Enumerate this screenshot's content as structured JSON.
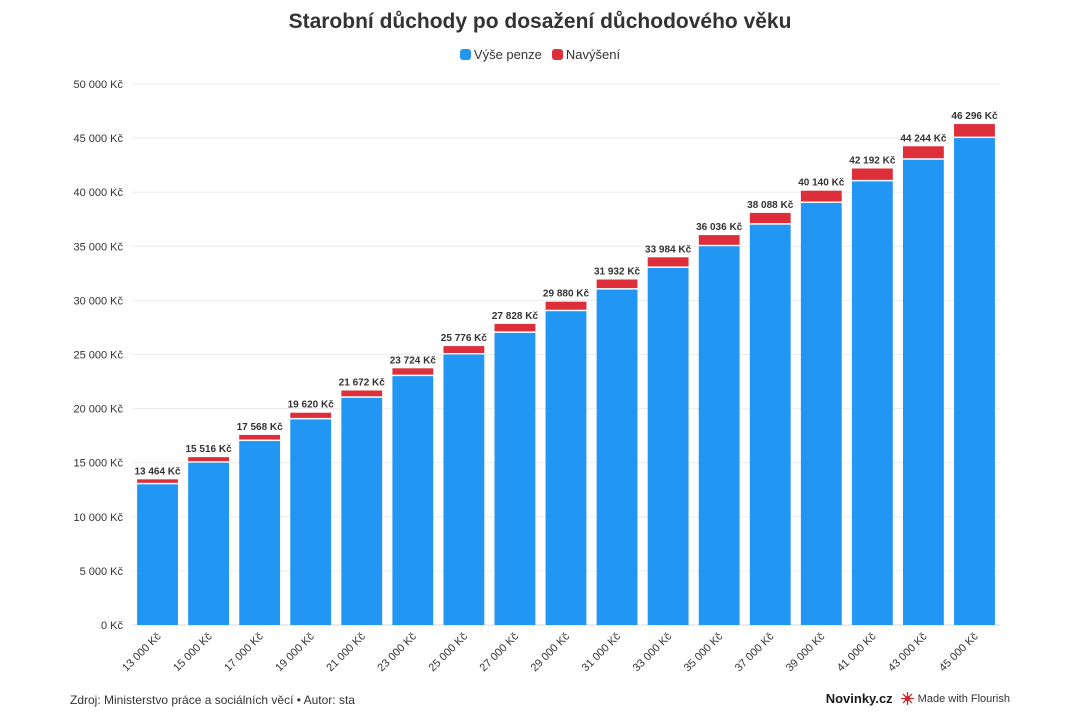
{
  "chart_data": {
    "type": "bar",
    "stacked": true,
    "title": "Starobní důchody po dosažení důchodového věku",
    "categories": [
      "13 000 Kč",
      "15 000 Kč",
      "17 000 Kč",
      "19 000 Kč",
      "21 000 Kč",
      "23 000 Kč",
      "25 000 Kč",
      "27 000 Kč",
      "29 000 Kč",
      "31 000 Kč",
      "33 000 Kč",
      "35 000 Kč",
      "37 000 Kč",
      "39 000 Kč",
      "41 000 Kč",
      "43 000 Kč",
      "45 000 Kč"
    ],
    "series": [
      {
        "name": "Výše penze",
        "color": "#2196f3",
        "values": [
          13000,
          15000,
          17000,
          19000,
          21000,
          23000,
          25000,
          27000,
          29000,
          31000,
          33000,
          35000,
          37000,
          39000,
          41000,
          43000,
          45000
        ]
      },
      {
        "name": "Navýšení",
        "color": "#dc2f3a",
        "values": [
          464,
          516,
          568,
          620,
          672,
          724,
          776,
          828,
          880,
          932,
          984,
          1036,
          1088,
          1140,
          1192,
          1244,
          1296
        ]
      }
    ],
    "total_labels": [
      "13 464 Kč",
      "15 516 Kč",
      "17 568 Kč",
      "19 620 Kč",
      "21 672 Kč",
      "23 724 Kč",
      "25 776 Kč",
      "27 828 Kč",
      "29 880 Kč",
      "31 932 Kč",
      "33 984 Kč",
      "36 036 Kč",
      "38 088 Kč",
      "40 140 Kč",
      "42 192 Kč",
      "44 244 Kč",
      "46 296 Kč"
    ],
    "y_ticks": [
      0,
      5000,
      10000,
      15000,
      20000,
      25000,
      30000,
      35000,
      40000,
      45000,
      50000
    ],
    "y_tick_labels": [
      "0 Kč",
      "5 000 Kč",
      "10 000 Kč",
      "15 000 Kč",
      "20 000 Kč",
      "25 000 Kč",
      "30 000 Kč",
      "35 000 Kč",
      "40 000 Kč",
      "45 000 Kč",
      "50 000 Kč"
    ],
    "ylim": [
      0,
      50000
    ],
    "xlabel": "",
    "ylabel": "",
    "grid": true,
    "legend_position": "top-center"
  },
  "footer": {
    "source": "Zdroj: Ministerstvo práce a sociálních věcí • Autor: sta",
    "brand": "Novinky.cz",
    "flourish": "Made with Flourish"
  },
  "icons": {
    "flourish": "flourish-star-icon"
  }
}
